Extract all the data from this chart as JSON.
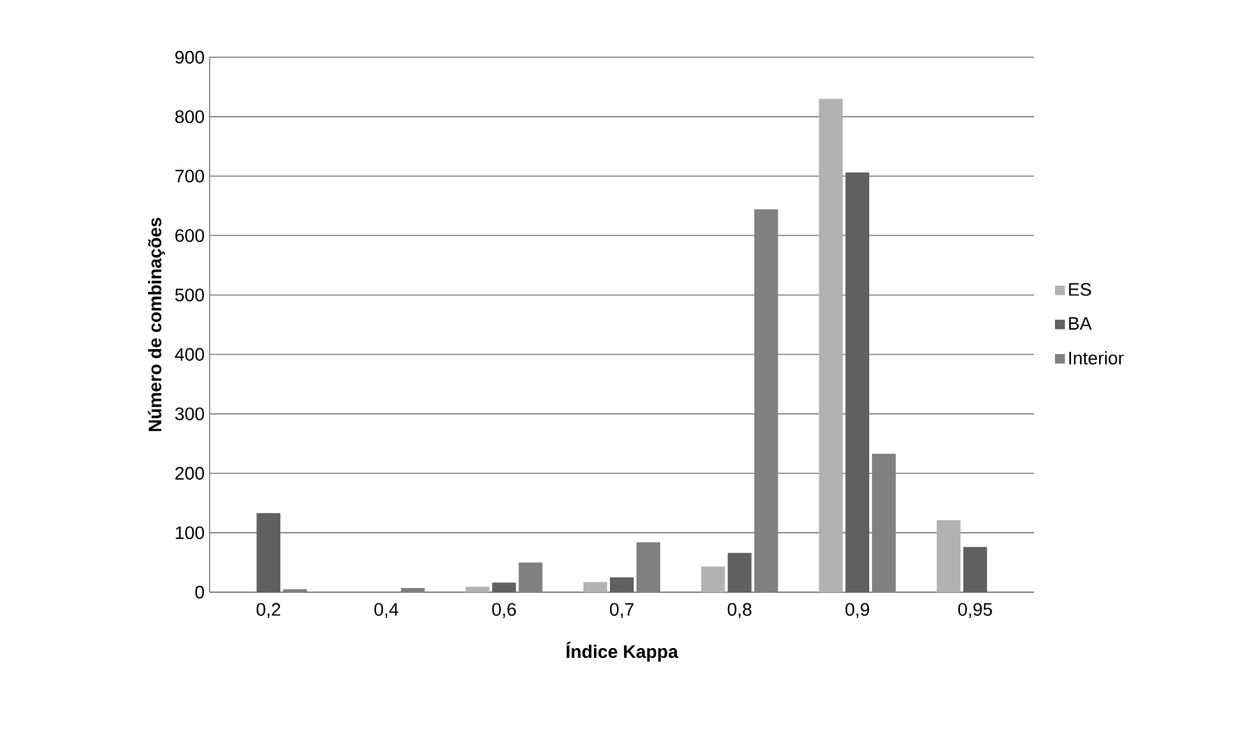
{
  "chart_data": {
    "type": "bar",
    "xlabel": "Índice Kappa",
    "ylabel": "Número de combinações",
    "categories": [
      "0,2",
      "0,4",
      "0,6",
      "0,7",
      "0,8",
      "0,9",
      "0,95"
    ],
    "series": [
      {
        "name": "ES",
        "color": "#b2b2b2",
        "values": [
          null,
          null,
          9,
          17,
          43,
          830,
          121
        ]
      },
      {
        "name": "BA",
        "color": "#606060",
        "values": [
          133,
          null,
          16,
          25,
          66,
          706,
          76
        ]
      },
      {
        "name": "Interior",
        "color": "#808080",
        "values": [
          5,
          7,
          50,
          84,
          644,
          233,
          0
        ]
      }
    ],
    "ylim": [
      0,
      900
    ],
    "yticks": [
      0,
      100,
      200,
      300,
      400,
      500,
      600,
      700,
      800,
      900
    ],
    "grid": "y",
    "legend": "right"
  }
}
